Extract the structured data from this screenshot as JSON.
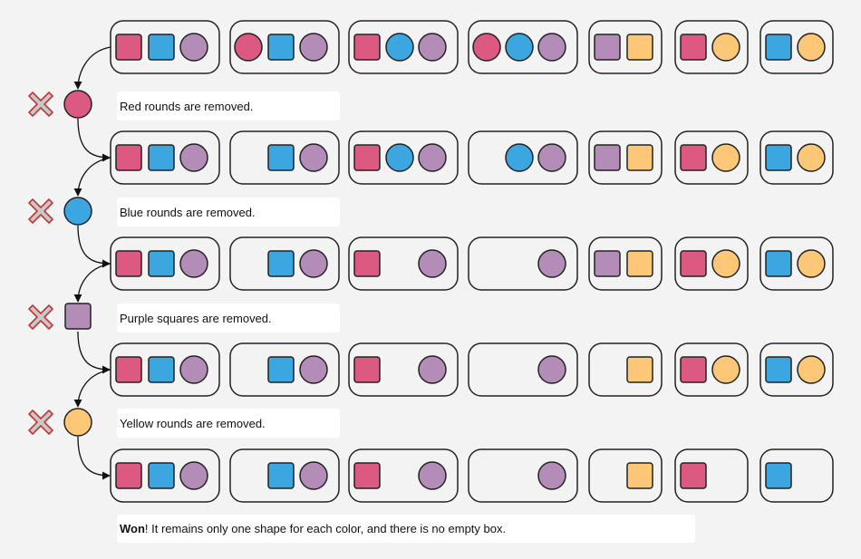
{
  "colors": {
    "red": "#dc5a82",
    "blue": "#3ca6e0",
    "purple": "#b48cb8",
    "yellow": "#fcc878",
    "stroke": "#222222",
    "cross_fill": "#c8c8c8",
    "cross_stroke": "#c03838",
    "box_fill": "#f3f3f3"
  },
  "rows": [
    [
      [
        [
          "red",
          "square"
        ],
        [
          "blue",
          "square"
        ],
        [
          "purple",
          "circle"
        ]
      ],
      [
        [
          "red",
          "circle"
        ],
        [
          "blue",
          "square"
        ],
        [
          "purple",
          "circle"
        ]
      ],
      [
        [
          "red",
          "square"
        ],
        [
          "blue",
          "circle"
        ],
        [
          "purple",
          "circle"
        ]
      ],
      [
        [
          "red",
          "circle"
        ],
        [
          "blue",
          "circle"
        ],
        [
          "purple",
          "circle"
        ]
      ],
      [
        [
          "purple",
          "square"
        ],
        [
          "yellow",
          "square"
        ]
      ],
      [
        [
          "red",
          "square"
        ],
        [
          "yellow",
          "circle"
        ]
      ],
      [
        [
          "blue",
          "square"
        ],
        [
          "yellow",
          "circle"
        ]
      ]
    ],
    [
      [
        [
          "red",
          "square"
        ],
        [
          "blue",
          "square"
        ],
        [
          "purple",
          "circle"
        ]
      ],
      [
        null,
        [
          "blue",
          "square"
        ],
        [
          "purple",
          "circle"
        ]
      ],
      [
        [
          "red",
          "square"
        ],
        [
          "blue",
          "circle"
        ],
        [
          "purple",
          "circle"
        ]
      ],
      [
        null,
        [
          "blue",
          "circle"
        ],
        [
          "purple",
          "circle"
        ]
      ],
      [
        [
          "purple",
          "square"
        ],
        [
          "yellow",
          "square"
        ]
      ],
      [
        [
          "red",
          "square"
        ],
        [
          "yellow",
          "circle"
        ]
      ],
      [
        [
          "blue",
          "square"
        ],
        [
          "yellow",
          "circle"
        ]
      ]
    ],
    [
      [
        [
          "red",
          "square"
        ],
        [
          "blue",
          "square"
        ],
        [
          "purple",
          "circle"
        ]
      ],
      [
        null,
        [
          "blue",
          "square"
        ],
        [
          "purple",
          "circle"
        ]
      ],
      [
        [
          "red",
          "square"
        ],
        null,
        [
          "purple",
          "circle"
        ]
      ],
      [
        null,
        null,
        [
          "purple",
          "circle"
        ]
      ],
      [
        [
          "purple",
          "square"
        ],
        [
          "yellow",
          "square"
        ]
      ],
      [
        [
          "red",
          "square"
        ],
        [
          "yellow",
          "circle"
        ]
      ],
      [
        [
          "blue",
          "square"
        ],
        [
          "yellow",
          "circle"
        ]
      ]
    ],
    [
      [
        [
          "red",
          "square"
        ],
        [
          "blue",
          "square"
        ],
        [
          "purple",
          "circle"
        ]
      ],
      [
        null,
        [
          "blue",
          "square"
        ],
        [
          "purple",
          "circle"
        ]
      ],
      [
        [
          "red",
          "square"
        ],
        null,
        [
          "purple",
          "circle"
        ]
      ],
      [
        null,
        null,
        [
          "purple",
          "circle"
        ]
      ],
      [
        null,
        [
          "yellow",
          "square"
        ]
      ],
      [
        [
          "red",
          "square"
        ],
        [
          "yellow",
          "circle"
        ]
      ],
      [
        [
          "blue",
          "square"
        ],
        [
          "yellow",
          "circle"
        ]
      ]
    ],
    [
      [
        [
          "red",
          "square"
        ],
        [
          "blue",
          "square"
        ],
        [
          "purple",
          "circle"
        ]
      ],
      [
        null,
        [
          "blue",
          "square"
        ],
        [
          "purple",
          "circle"
        ]
      ],
      [
        [
          "red",
          "square"
        ],
        null,
        [
          "purple",
          "circle"
        ]
      ],
      [
        null,
        null,
        [
          "purple",
          "circle"
        ]
      ],
      [
        null,
        [
          "yellow",
          "square"
        ]
      ],
      [
        [
          "red",
          "square"
        ],
        null
      ],
      [
        [
          "blue",
          "square"
        ],
        null
      ]
    ]
  ],
  "steps": [
    {
      "color": "red",
      "shape": "circle",
      "text": "Red rounds are removed."
    },
    {
      "color": "blue",
      "shape": "circle",
      "text": "Blue rounds are removed."
    },
    {
      "color": "purple",
      "shape": "square",
      "text": "Purple squares are removed."
    },
    {
      "color": "yellow",
      "shape": "circle",
      "text": "Yellow rounds are removed."
    }
  ],
  "final_message": {
    "bold": "Won",
    "rest": " ! It remains only one shape for each color, and there is no empty box."
  }
}
